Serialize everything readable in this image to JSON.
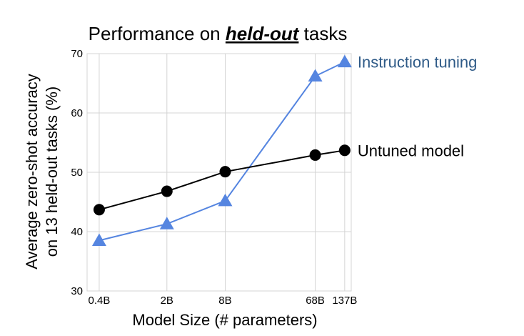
{
  "chart_data": {
    "type": "line",
    "title_prefix": "Performance on ",
    "title_emphasis": "held-out",
    "title_suffix": " tasks",
    "xlabel": "Model Size (# parameters)",
    "ylabel_line1": "Average zero-shot accuracy",
    "ylabel_line2": "on 13 held-out tasks (%)",
    "x_scale": "log",
    "x_values_billions": [
      0.4,
      2,
      8,
      68,
      137
    ],
    "x_tick_labels": [
      "0.4B",
      "2B",
      "8B",
      "68B",
      "137B"
    ],
    "ylim": [
      30,
      70
    ],
    "y_ticks": [
      30,
      40,
      50,
      60,
      70
    ],
    "grid": true,
    "series": [
      {
        "name": "Instruction tuning",
        "marker": "triangle",
        "color": "#5585e0",
        "label_color": "#2e5a87",
        "values": [
          38.5,
          41.3,
          45.2,
          66.2,
          68.6
        ]
      },
      {
        "name": "Untuned model",
        "marker": "circle",
        "color": "#000000",
        "label_color": "#000000",
        "values": [
          43.7,
          46.8,
          50.1,
          52.9,
          53.7
        ]
      }
    ]
  }
}
